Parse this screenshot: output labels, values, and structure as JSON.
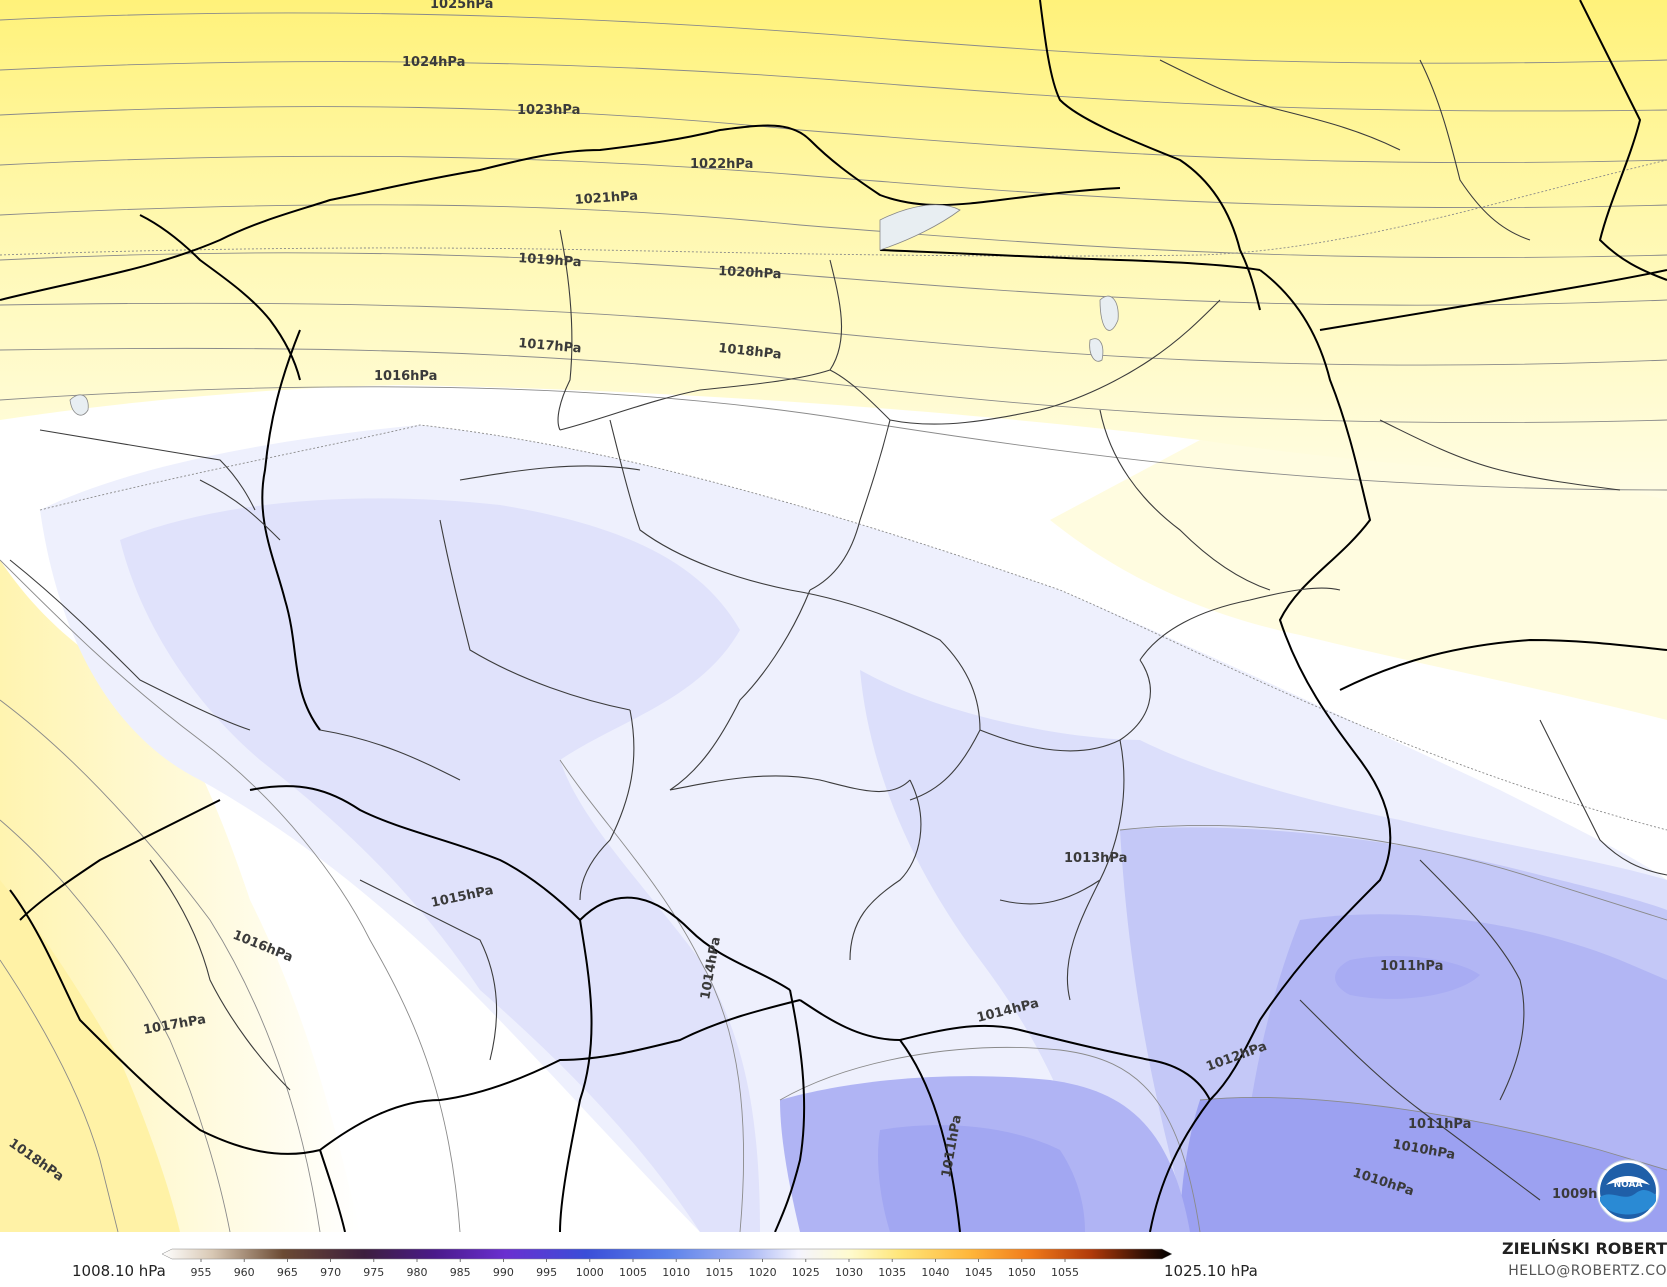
{
  "map": {
    "isobar_labels": [
      {
        "text": "1025hPa"
      },
      {
        "text": "1024hPa"
      },
      {
        "text": "1023hPa"
      },
      {
        "text": "1022hPa"
      },
      {
        "text": "1021hPa"
      },
      {
        "text": "1019hPa"
      },
      {
        "text": "1020hPa"
      },
      {
        "text": "1017hPa"
      },
      {
        "text": "1018hPa"
      },
      {
        "text": "1016hPa"
      },
      {
        "text": "1015hPa"
      },
      {
        "text": "1016hPa"
      },
      {
        "text": "1017hPa"
      },
      {
        "text": "1018hPa"
      },
      {
        "text": "1014hPa"
      },
      {
        "text": "1014hPa"
      },
      {
        "text": "1013hPa"
      },
      {
        "text": "1012hPa"
      },
      {
        "text": "1011hPa"
      },
      {
        "text": "1011hPa"
      },
      {
        "text": "1011hPa"
      },
      {
        "text": "1010hPa"
      },
      {
        "text": "1010hPa"
      },
      {
        "text": "1009h"
      }
    ],
    "logo_label": "NOAA"
  },
  "legend": {
    "min_label": "1008.10 hPa",
    "max_label": "1025.10 hPa",
    "ticks": [
      "955",
      "960",
      "965",
      "970",
      "975",
      "980",
      "985",
      "990",
      "995",
      "1000",
      "1005",
      "1010",
      "1015",
      "1020",
      "1025",
      "1030",
      "1035",
      "1040",
      "1045",
      "1050",
      "1055"
    ],
    "tick_colors": [
      "#e0d6c8",
      "#b39a82",
      "#6b4a33",
      "#3d1f2e",
      "#3a1560",
      "#6a2fbf",
      "#5a3cd8",
      "#4a55e0",
      "#3a6fe8",
      "#5a88ee",
      "#7aa0f2",
      "#a0b4f6",
      "#e8ecfc",
      "#fffde0",
      "#fff4a0",
      "#ffd65a",
      "#ffb02e",
      "#ff8a1a",
      "#e05a10",
      "#a02a08",
      "#1a0a04"
    ]
  },
  "credit": {
    "name": "ZIELIŃSKI ROBERT",
    "email": "HELLO@ROBERTZ.CO"
  },
  "colors": {
    "high_pressure": "#fff27a",
    "neutral": "#ffffff",
    "low_pressure": "#9a9ff2",
    "border": "#000000",
    "region_line": "#3c3c3c",
    "isobar": "#8a8a8a"
  }
}
